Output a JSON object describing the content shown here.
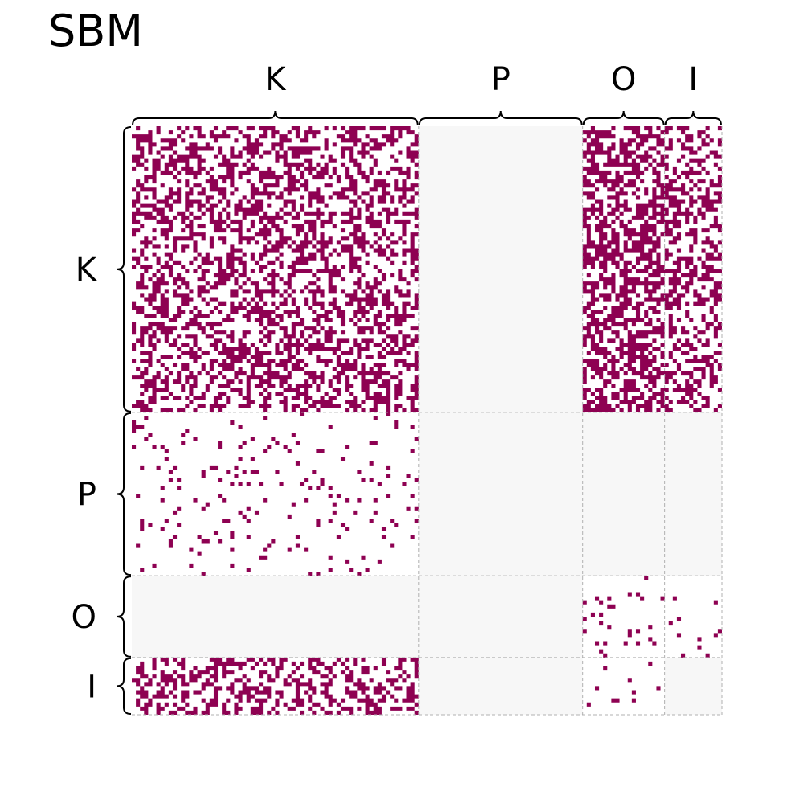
{
  "title": "SBM",
  "chart_data": {
    "type": "heatmap",
    "subtype": "adjacency-matrix",
    "title": "SBM",
    "blocks": [
      {
        "label": "K",
        "size": 70
      },
      {
        "label": "P",
        "size": 40
      },
      {
        "label": "O",
        "size": 20
      },
      {
        "label": "I",
        "size": 14
      }
    ],
    "edge_probability": [
      [
        0.45,
        0.0,
        0.55,
        0.4
      ],
      [
        0.06,
        0.0,
        0.0,
        0.0
      ],
      [
        0.0,
        0.0,
        0.05,
        0.03
      ],
      [
        0.4,
        0.0,
        0.05,
        0.0
      ]
    ],
    "colors": {
      "edge": "#8e0152",
      "block_background": "#f7f7f7",
      "nonzero_background": "#ffffff",
      "grid": "#b0b0b0",
      "brace": "#000000"
    },
    "grid_style": "dashed",
    "labels_position": [
      "top",
      "left"
    ]
  }
}
